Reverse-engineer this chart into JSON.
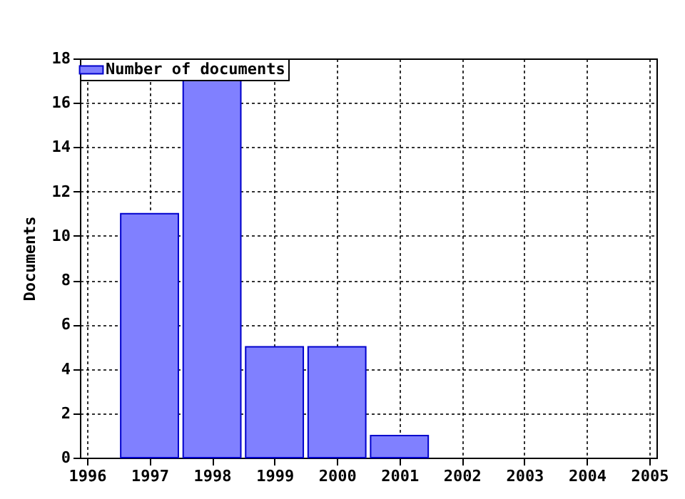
{
  "chart_data": {
    "type": "bar",
    "ylabel": "Documents",
    "x": [
      1997,
      1998,
      1999,
      2000,
      2001
    ],
    "series": [
      {
        "name": "Number of documents",
        "color": "#8080ff",
        "values": [
          11,
          17,
          5,
          5,
          1
        ]
      }
    ],
    "xlim": [
      1996,
      2005
    ],
    "xticks": [
      1996,
      1997,
      1998,
      1999,
      2000,
      2001,
      2002,
      2003,
      2004,
      2005
    ],
    "ylim": [
      0,
      18
    ],
    "yticks": [
      0,
      2,
      4,
      6,
      8,
      10,
      12,
      14,
      16,
      18
    ],
    "grid": true,
    "legend": "top left"
  }
}
